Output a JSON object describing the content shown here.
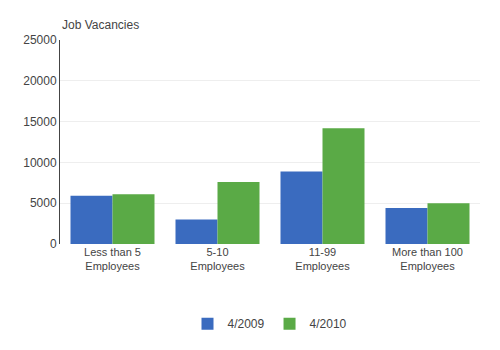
{
  "chart_data": {
    "type": "bar",
    "ylabel": "Job Vacancies",
    "categories": [
      "Less than 5\nEmployees",
      "5-10\nEmployees",
      "11-99\nEmployees",
      "More than 100\nEmployees"
    ],
    "series": [
      {
        "name": "4/2009",
        "color": "#3a6bbf",
        "values": [
          5900,
          3000,
          8900,
          4400
        ]
      },
      {
        "name": "4/2010",
        "color": "#5aaa46",
        "values": [
          6100,
          7600,
          14200,
          5000
        ]
      }
    ],
    "ylim": [
      0,
      25000
    ],
    "yticks": [
      0,
      5000,
      10000,
      15000,
      20000,
      25000
    ],
    "grid": true,
    "legend": "bottom"
  }
}
